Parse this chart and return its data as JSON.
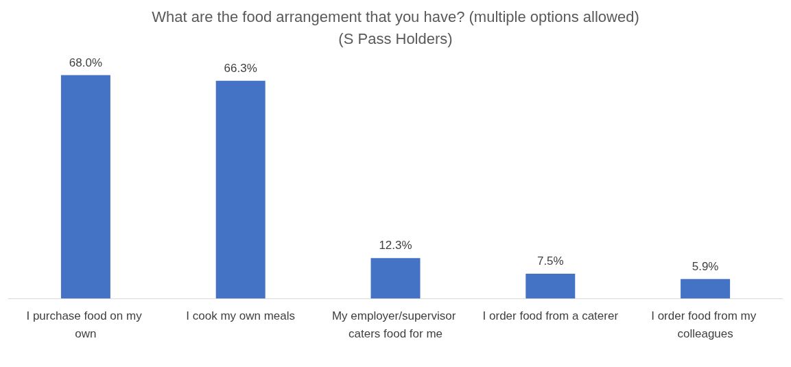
{
  "chart_data": {
    "type": "bar",
    "title": "What are the food arrangement that you have? (multiple options allowed)",
    "subtitle": "(S Pass Holders)",
    "categories": [
      "I purchase food on my own",
      "I cook my own meals",
      "My employer/supervisor caters food for me",
      "I order food from a caterer",
      "I order food from my colleagues"
    ],
    "values": [
      68.0,
      66.3,
      12.3,
      7.5,
      5.9
    ],
    "value_labels": [
      "68.0%",
      "66.3%",
      "12.3%",
      "7.5%",
      "5.9%"
    ],
    "color": "#4472c4"
  }
}
